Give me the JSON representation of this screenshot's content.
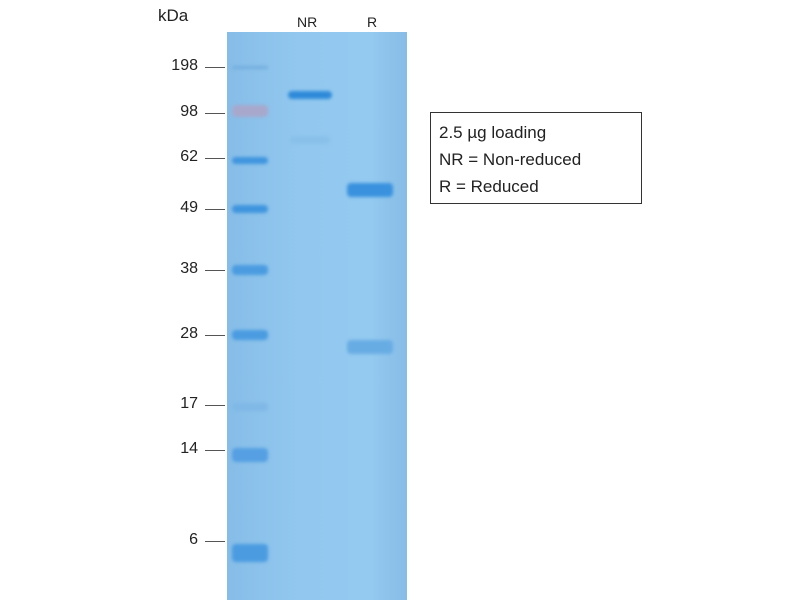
{
  "unit_label": "kDa",
  "lanes": [
    {
      "label": "NR"
    },
    {
      "label": "R"
    }
  ],
  "markers": [
    "198",
    "98",
    "62",
    "49",
    "38",
    "28",
    "17",
    "14",
    "6"
  ],
  "legend": {
    "lines": [
      "2.5 µg loading",
      "NR = Non-reduced",
      "R = Reduced"
    ]
  },
  "colors": {
    "gel": "#92c8ef",
    "band": "#3a92de"
  }
}
